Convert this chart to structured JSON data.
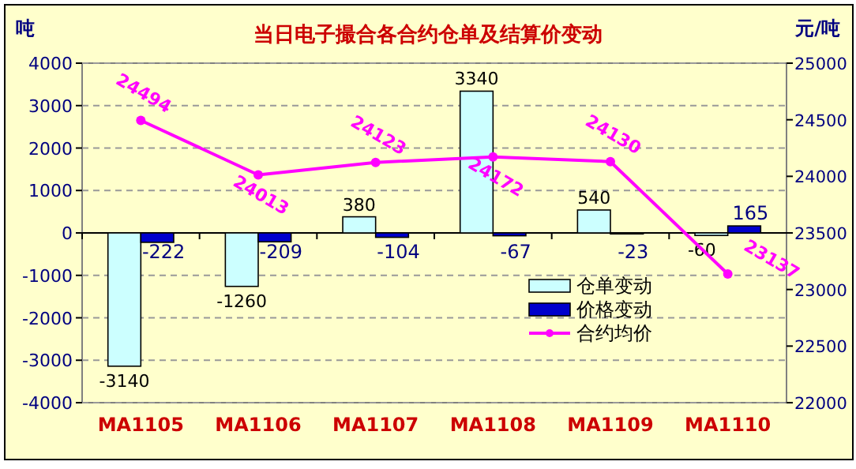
{
  "chart_data": {
    "type": "bar",
    "title": "当日电子撮合各合约仓单及结算价变动",
    "ylabel": "吨",
    "y2label": "元/吨",
    "categories": [
      "MA1105",
      "MA1106",
      "MA1107",
      "MA1108",
      "MA1109",
      "MA1110"
    ],
    "series": [
      {
        "name": "仓单变动",
        "color": "#ccffff",
        "values": [
          -3140,
          -1260,
          380,
          3340,
          540,
          -60
        ]
      },
      {
        "name": "价格变动",
        "color": "#0000cc",
        "values": [
          -222,
          -209,
          -104,
          -67,
          -23,
          165
        ]
      },
      {
        "name": "合约均价",
        "type": "line",
        "axis": "y2",
        "color": "#ff00ff",
        "marker": "circle",
        "values": [
          24494,
          24013,
          24123,
          24172,
          24130,
          23137
        ]
      }
    ],
    "ylim": [
      -4000,
      4000
    ],
    "yticks": [
      -4000,
      -3000,
      -2000,
      -1000,
      0,
      1000,
      2000,
      3000,
      4000
    ],
    "y2lim": [
      22000,
      25000
    ],
    "y2ticks": [
      22000,
      22500,
      23000,
      23500,
      24000,
      24500,
      25000
    ],
    "grid": "y",
    "legend": "right",
    "data_labels": true
  }
}
